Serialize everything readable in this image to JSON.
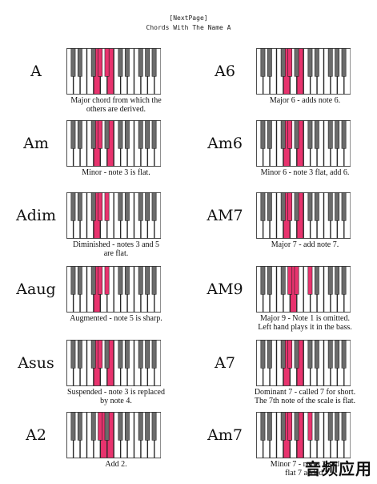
{
  "header": {
    "nav_link": "[NextPage]",
    "title": "Chords With The Name A"
  },
  "colors": {
    "highlight": "#e8336e",
    "white_key": "#ffffff",
    "black_key": "#6b6b6b",
    "outline": "#222222"
  },
  "chords": [
    {
      "name": "A",
      "desc": [
        "Major chord from which the",
        "others are derived."
      ],
      "white": [],
      "black": []
    },
    {
      "name": "A6",
      "desc": [
        "Major 6 - adds note 6."
      ],
      "white": [],
      "black": []
    },
    {
      "name": "Am",
      "desc": [
        "Minor - note 3 is flat."
      ],
      "white": [],
      "black": []
    },
    {
      "name": "Am6",
      "desc": [
        "Minor 6 - note 3 flat, add 6."
      ],
      "white": [],
      "black": []
    },
    {
      "name": "Adim",
      "desc": [
        "Diminished - notes 3 and 5",
        "are flat."
      ],
      "white": [],
      "black": []
    },
    {
      "name": "AM7",
      "desc": [
        "Major 7 - add note 7."
      ],
      "white": [],
      "black": []
    },
    {
      "name": "Aaug",
      "desc": [
        "Augmented - note 5 is sharp."
      ],
      "white": [],
      "black": []
    },
    {
      "name": "AM9",
      "desc": [
        "Major 9 - Note 1 is omitted.",
        "Left hand plays it in the bass."
      ],
      "white": [],
      "black": []
    },
    {
      "name": "Asus",
      "desc": [
        "Suspended - note 3 is replaced",
        "by note 4."
      ],
      "white": [],
      "black": []
    },
    {
      "name": "A7",
      "desc": [
        "Dominant 7 - called 7 for short.",
        "The 7th note of the scale is flat."
      ],
      "white": [],
      "black": []
    },
    {
      "name": "A2",
      "desc": [
        "Add 2."
      ],
      "white": [],
      "black": []
    },
    {
      "name": "Am7",
      "desc": [
        "Minor 7 - notes 3 and",
        "flat 7 added."
      ],
      "white": [],
      "black": []
    }
  ],
  "watermark": "音频应用"
}
